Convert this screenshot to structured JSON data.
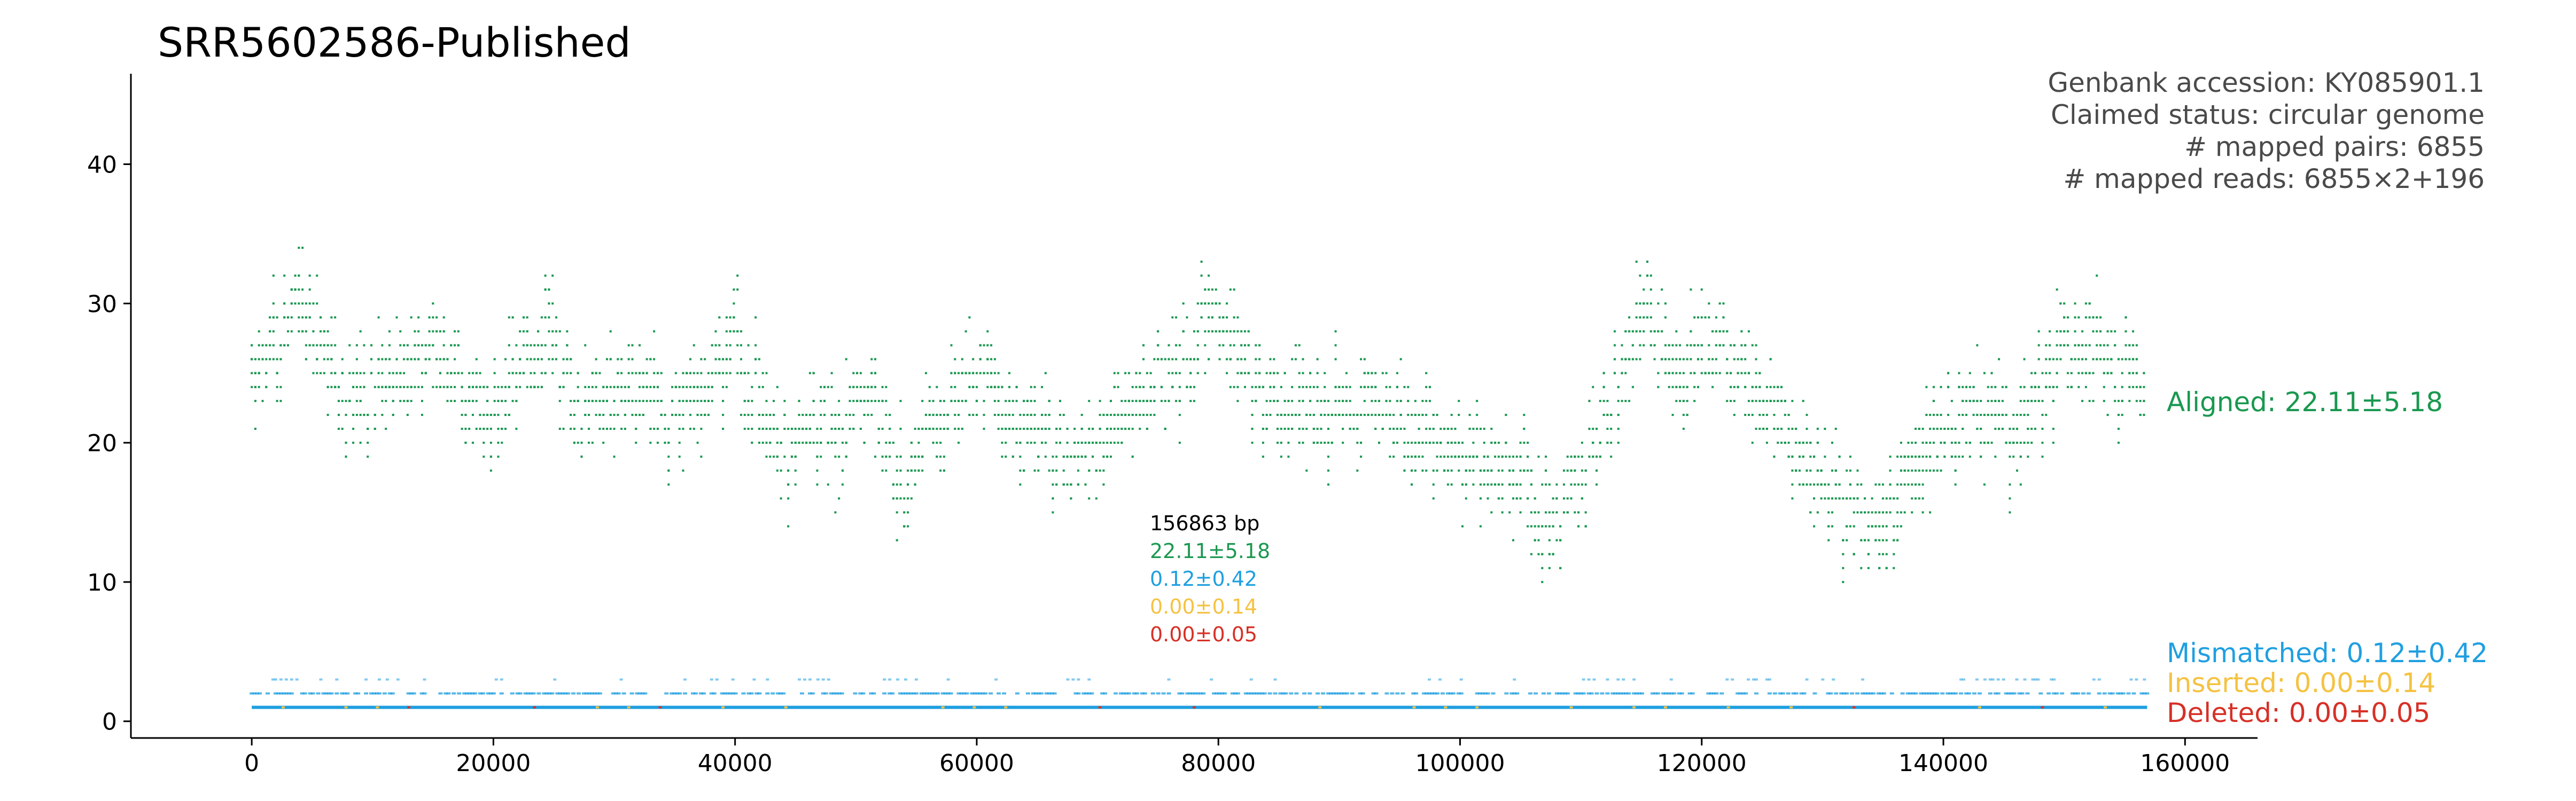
{
  "chart_data": {
    "type": "scatter",
    "title": "SRR5602586-Published",
    "xlabel": "",
    "ylabel": "",
    "xlim": [
      -10000,
      166000
    ],
    "ylim": [
      -1.2,
      46.5
    ],
    "x_ticks": [
      0,
      20000,
      40000,
      60000,
      80000,
      100000,
      120000,
      140000,
      160000
    ],
    "y_ticks": [
      0,
      10,
      20,
      30,
      40
    ],
    "genome_length_bp": 156863,
    "info_lines": [
      "Genbank accession: KY085901.1",
      "Claimed status: circular genome",
      "# mapped pairs: 6855",
      "# mapped reads: 6855×2+196"
    ],
    "center_labels": {
      "length": "156863 bp",
      "aligned": "22.11±5.18",
      "mismatched": "0.12±0.42",
      "inserted": "0.00±0.14",
      "deleted": "0.00±0.05"
    },
    "series": [
      {
        "name": "Aligned: 22.11±5.18",
        "color": "#1a9850",
        "mean": 22.11,
        "sd": 5.18,
        "profile_x": [
          0,
          4000,
          8000,
          12000,
          16000,
          20000,
          24000,
          28000,
          32000,
          36000,
          40000,
          44000,
          48000,
          52000,
          54000,
          56000,
          60000,
          64000,
          68000,
          72000,
          76000,
          80000,
          84000,
          88000,
          92000,
          96000,
          100000,
          104000,
          108000,
          112000,
          115000,
          118000,
          122000,
          126000,
          130000,
          134000,
          138000,
          142000,
          146000,
          150000,
          154000,
          156863
        ],
        "profile_y": [
          24,
          30,
          23,
          25,
          26,
          21,
          28,
          22,
          24,
          22,
          27,
          20,
          21,
          23,
          16,
          21,
          25,
          21,
          19,
          22,
          25,
          29,
          23,
          22,
          23,
          21,
          19,
          18,
          15,
          21,
          30,
          25,
          27,
          22,
          17,
          14,
          19,
          23,
          20,
          27,
          26,
          24
        ]
      },
      {
        "name": "Mismatched: 0.12±0.42",
        "color": "#1f9fe0",
        "mean": 0.12,
        "sd": 0.42
      },
      {
        "name": "Inserted: 0.00±0.14",
        "color": "#f5c242",
        "mean": 0.0,
        "sd": 0.14
      },
      {
        "name": "Deleted: 0.00±0.05",
        "color": "#d73027",
        "mean": 0.0,
        "sd": 0.05
      }
    ],
    "legend_placement": "right",
    "grid": false
  }
}
